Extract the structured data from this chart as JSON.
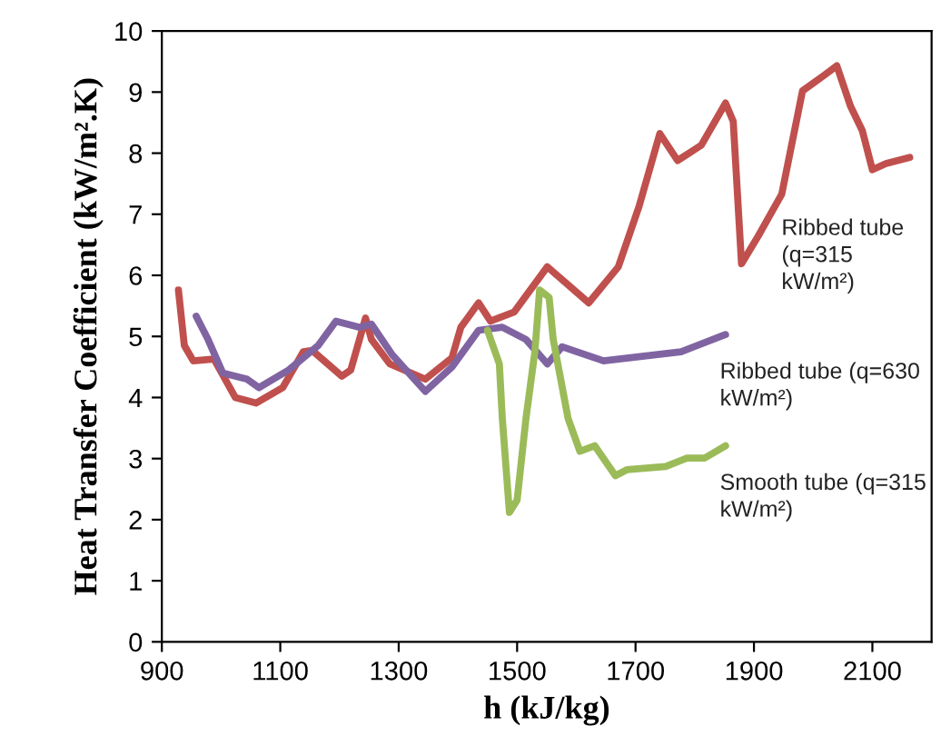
{
  "chart_data": {
    "type": "line",
    "xlabel": "h (kJ/kg)",
    "ylabel": "Heat Transfer Coefficient (kW/m².K)",
    "xlim": [
      900,
      2200
    ],
    "xticks": [
      900,
      1100,
      1300,
      1500,
      1700,
      1900,
      2100
    ],
    "ylim": [
      0,
      10
    ],
    "yticks": [
      0,
      1,
      2,
      3,
      4,
      5,
      6,
      7,
      8,
      9,
      10
    ],
    "grid": false,
    "legend": false,
    "marker": "none",
    "line_style": "solid",
    "series": [
      {
        "name": "Ribbed tube\n(q=315\nkW/m²)",
        "color": "#c0504d",
        "x": [
          928,
          938,
          953,
          988,
          1024,
          1059,
          1104,
          1139,
          1154,
          1204,
          1219,
          1244,
          1254,
          1285,
          1345,
          1390,
          1405,
          1435,
          1455,
          1495,
          1551,
          1621,
          1671,
          1706,
          1741,
          1771,
          1811,
          1852,
          1865,
          1879,
          1907,
          1947,
          1982,
          2018,
          2040,
          2063,
          2083,
          2100,
          2123,
          2163
        ],
        "values": [
          5.76,
          4.85,
          4.6,
          4.63,
          4.0,
          3.91,
          4.16,
          4.75,
          4.77,
          4.35,
          4.45,
          5.3,
          4.95,
          4.55,
          4.3,
          4.65,
          5.15,
          5.55,
          5.25,
          5.4,
          6.14,
          5.55,
          6.14,
          7.13,
          8.32,
          7.88,
          8.13,
          8.82,
          8.52,
          6.19,
          6.64,
          7.33,
          9.02,
          9.27,
          9.43,
          8.77,
          8.37,
          7.73,
          7.83,
          7.93
        ]
      },
      {
        "name": "Ribbed tube (q=630\nkW/m²)",
        "color": "#8064a2",
        "x": [
          958,
          978,
          1003,
          1044,
          1064,
          1114,
          1164,
          1194,
          1234,
          1254,
          1289,
          1345,
          1390,
          1435,
          1475,
          1515,
          1551,
          1576,
          1646,
          1777,
          1852
        ],
        "values": [
          5.33,
          4.95,
          4.4,
          4.3,
          4.16,
          4.45,
          4.85,
          5.25,
          5.15,
          5.2,
          4.7,
          4.1,
          4.5,
          5.1,
          5.15,
          4.95,
          4.55,
          4.83,
          4.6,
          4.75,
          5.03
        ]
      },
      {
        "name": "Smooth tube (q=315\nkW/m²)",
        "color": "#9bbb59",
        "x": [
          1450,
          1470,
          1475,
          1487,
          1500,
          1515,
          1530,
          1538,
          1554,
          1561,
          1586,
          1606,
          1631,
          1666,
          1686,
          1751,
          1787,
          1817,
          1852
        ],
        "values": [
          5.1,
          4.55,
          3.66,
          2.12,
          2.32,
          3.66,
          4.75,
          5.76,
          5.64,
          4.95,
          3.66,
          3.12,
          3.21,
          2.72,
          2.82,
          2.87,
          3.01,
          3.01,
          3.21
        ]
      }
    ]
  }
}
